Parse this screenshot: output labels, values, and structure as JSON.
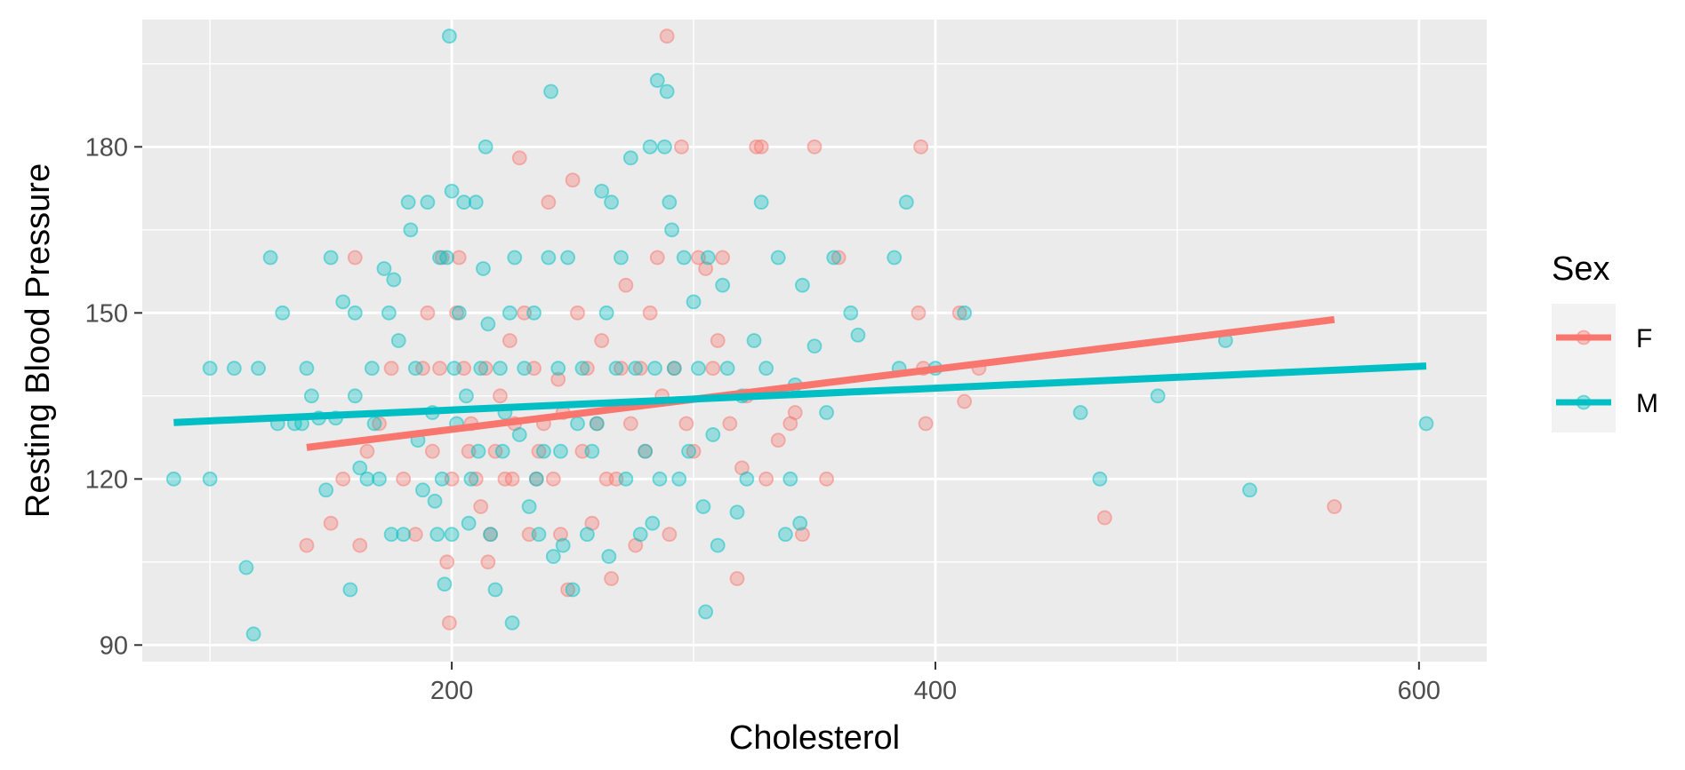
{
  "chart_data": {
    "type": "scatter",
    "xlabel": "Cholesterol",
    "ylabel": "Resting Blood Pressure",
    "xlim": [
      72,
      628
    ],
    "ylim": [
      87,
      203
    ],
    "x_ticks": [
      200,
      400,
      600
    ],
    "y_ticks": [
      90,
      120,
      150,
      180
    ],
    "grid": true,
    "legend": {
      "title": "Sex",
      "position": "right"
    },
    "colors": {
      "F": "#F8766D",
      "M": "#00BFC4",
      "panel": "#EBEBEB",
      "grid": "#FFFFFF"
    },
    "point_alpha": 0.35,
    "series": [
      {
        "name": "F",
        "color": "#F8766D",
        "points": [
          [
            140,
            108
          ],
          [
            150,
            112
          ],
          [
            155,
            120
          ],
          [
            160,
            160
          ],
          [
            162,
            108
          ],
          [
            165,
            125
          ],
          [
            170,
            130
          ],
          [
            175,
            140
          ],
          [
            180,
            120
          ],
          [
            185,
            110
          ],
          [
            188,
            140
          ],
          [
            190,
            150
          ],
          [
            192,
            125
          ],
          [
            195,
            140
          ],
          [
            196,
            160
          ],
          [
            198,
            105
          ],
          [
            199,
            94
          ],
          [
            200,
            120
          ],
          [
            202,
            150
          ],
          [
            203,
            160
          ],
          [
            205,
            140
          ],
          [
            207,
            125
          ],
          [
            208,
            130
          ],
          [
            210,
            120
          ],
          [
            212,
            115
          ],
          [
            214,
            140
          ],
          [
            216,
            110
          ],
          [
            218,
            125
          ],
          [
            220,
            135
          ],
          [
            222,
            120
          ],
          [
            224,
            145
          ],
          [
            226,
            130
          ],
          [
            228,
            178
          ],
          [
            230,
            150
          ],
          [
            232,
            110
          ],
          [
            234,
            140
          ],
          [
            236,
            125
          ],
          [
            238,
            130
          ],
          [
            240,
            170
          ],
          [
            242,
            120
          ],
          [
            244,
            138
          ],
          [
            246,
            132
          ],
          [
            248,
            100
          ],
          [
            250,
            174
          ],
          [
            252,
            150
          ],
          [
            254,
            125
          ],
          [
            256,
            140
          ],
          [
            258,
            112
          ],
          [
            260,
            130
          ],
          [
            262,
            145
          ],
          [
            264,
            120
          ],
          [
            266,
            102
          ],
          [
            268,
            120
          ],
          [
            270,
            140
          ],
          [
            272,
            155
          ],
          [
            274,
            130
          ],
          [
            276,
            108
          ],
          [
            278,
            140
          ],
          [
            280,
            125
          ],
          [
            282,
            150
          ],
          [
            285,
            160
          ],
          [
            287,
            135
          ],
          [
            289,
            200
          ],
          [
            290,
            110
          ],
          [
            292,
            140
          ],
          [
            295,
            180
          ],
          [
            297,
            130
          ],
          [
            300,
            125
          ],
          [
            302,
            160
          ],
          [
            305,
            158
          ],
          [
            308,
            140
          ],
          [
            310,
            145
          ],
          [
            312,
            160
          ],
          [
            315,
            130
          ],
          [
            318,
            102
          ],
          [
            320,
            122
          ],
          [
            322,
            135
          ],
          [
            326,
            180
          ],
          [
            328,
            180
          ],
          [
            330,
            120
          ],
          [
            335,
            127
          ],
          [
            340,
            130
          ],
          [
            342,
            132
          ],
          [
            345,
            110
          ],
          [
            350,
            180
          ],
          [
            355,
            120
          ],
          [
            360,
            160
          ],
          [
            393,
            150
          ],
          [
            394,
            180
          ],
          [
            395,
            140
          ],
          [
            396,
            130
          ],
          [
            410,
            150
          ],
          [
            412,
            134
          ],
          [
            418,
            140
          ],
          [
            470,
            113
          ],
          [
            565,
            115
          ],
          [
            215,
            105
          ],
          [
            225,
            120
          ],
          [
            235,
            120
          ],
          [
            245,
            110
          ]
        ],
        "trend": [
          [
            140,
            125.7
          ],
          [
            565,
            148.8
          ]
        ]
      },
      {
        "name": "M",
        "color": "#00BFC4",
        "points": [
          [
            85,
            120
          ],
          [
            100,
            120
          ],
          [
            100,
            140
          ],
          [
            110,
            140
          ],
          [
            115,
            104
          ],
          [
            118,
            92
          ],
          [
            120,
            140
          ],
          [
            125,
            160
          ],
          [
            128,
            130
          ],
          [
            130,
            150
          ],
          [
            135,
            130
          ],
          [
            138,
            130
          ],
          [
            140,
            140
          ],
          [
            142,
            135
          ],
          [
            145,
            131
          ],
          [
            148,
            118
          ],
          [
            150,
            160
          ],
          [
            152,
            131
          ],
          [
            155,
            152
          ],
          [
            158,
            100
          ],
          [
            160,
            150
          ],
          [
            160,
            135
          ],
          [
            162,
            122
          ],
          [
            165,
            120
          ],
          [
            167,
            140
          ],
          [
            168,
            130
          ],
          [
            170,
            120
          ],
          [
            172,
            158
          ],
          [
            174,
            150
          ],
          [
            175,
            110
          ],
          [
            176,
            156
          ],
          [
            178,
            145
          ],
          [
            180,
            110
          ],
          [
            182,
            170
          ],
          [
            183,
            165
          ],
          [
            185,
            140
          ],
          [
            186,
            127
          ],
          [
            188,
            118
          ],
          [
            190,
            170
          ],
          [
            192,
            132
          ],
          [
            193,
            116
          ],
          [
            194,
            110
          ],
          [
            195,
            160
          ],
          [
            196,
            120
          ],
          [
            197,
            101
          ],
          [
            198,
            160
          ],
          [
            199,
            200
          ],
          [
            200,
            172
          ],
          [
            200,
            110
          ],
          [
            201,
            140
          ],
          [
            202,
            130
          ],
          [
            203,
            150
          ],
          [
            205,
            170
          ],
          [
            206,
            135
          ],
          [
            207,
            112
          ],
          [
            208,
            120
          ],
          [
            210,
            170
          ],
          [
            211,
            125
          ],
          [
            212,
            140
          ],
          [
            213,
            158
          ],
          [
            214,
            180
          ],
          [
            215,
            148
          ],
          [
            216,
            110
          ],
          [
            218,
            100
          ],
          [
            220,
            140
          ],
          [
            221,
            125
          ],
          [
            222,
            132
          ],
          [
            224,
            150
          ],
          [
            225,
            94
          ],
          [
            226,
            160
          ],
          [
            228,
            128
          ],
          [
            230,
            140
          ],
          [
            232,
            115
          ],
          [
            234,
            150
          ],
          [
            235,
            120
          ],
          [
            236,
            110
          ],
          [
            238,
            125
          ],
          [
            240,
            160
          ],
          [
            241,
            190
          ],
          [
            242,
            106
          ],
          [
            244,
            140
          ],
          [
            245,
            125
          ],
          [
            246,
            108
          ],
          [
            248,
            160
          ],
          [
            250,
            100
          ],
          [
            252,
            130
          ],
          [
            254,
            140
          ],
          [
            256,
            110
          ],
          [
            258,
            125
          ],
          [
            260,
            130
          ],
          [
            262,
            172
          ],
          [
            264,
            150
          ],
          [
            265,
            106
          ],
          [
            266,
            170
          ],
          [
            268,
            140
          ],
          [
            270,
            160
          ],
          [
            272,
            120
          ],
          [
            274,
            178
          ],
          [
            276,
            140
          ],
          [
            278,
            110
          ],
          [
            280,
            125
          ],
          [
            282,
            180
          ],
          [
            283,
            112
          ],
          [
            284,
            140
          ],
          [
            285,
            192
          ],
          [
            286,
            120
          ],
          [
            288,
            180
          ],
          [
            289,
            190
          ],
          [
            290,
            170
          ],
          [
            291,
            165
          ],
          [
            292,
            140
          ],
          [
            294,
            120
          ],
          [
            296,
            160
          ],
          [
            298,
            125
          ],
          [
            300,
            152
          ],
          [
            302,
            140
          ],
          [
            304,
            115
          ],
          [
            305,
            96
          ],
          [
            306,
            160
          ],
          [
            308,
            128
          ],
          [
            310,
            108
          ],
          [
            312,
            155
          ],
          [
            314,
            140
          ],
          [
            318,
            114
          ],
          [
            320,
            135
          ],
          [
            322,
            120
          ],
          [
            325,
            145
          ],
          [
            328,
            170
          ],
          [
            330,
            140
          ],
          [
            335,
            160
          ],
          [
            338,
            110
          ],
          [
            340,
            120
          ],
          [
            342,
            137
          ],
          [
            344,
            112
          ],
          [
            345,
            155
          ],
          [
            350,
            144
          ],
          [
            355,
            132
          ],
          [
            358,
            160
          ],
          [
            365,
            150
          ],
          [
            368,
            146
          ],
          [
            383,
            160
          ],
          [
            385,
            140
          ],
          [
            388,
            170
          ],
          [
            400,
            140
          ],
          [
            412,
            150
          ],
          [
            460,
            132
          ],
          [
            468,
            120
          ],
          [
            492,
            135
          ],
          [
            520,
            145
          ],
          [
            530,
            118
          ],
          [
            603,
            130
          ]
        ],
        "trend": [
          [
            85,
            130.2
          ],
          [
            603,
            140.4
          ]
        ]
      }
    ]
  }
}
